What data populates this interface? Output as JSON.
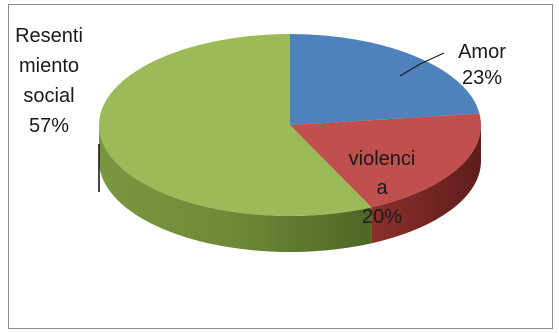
{
  "chart_data": {
    "type": "pie",
    "style": "3d",
    "categories": [
      "Amor",
      "violencia",
      "Resentimiento social"
    ],
    "values": [
      23,
      20,
      57
    ],
    "labels": [
      [
        "Amor",
        "23%"
      ],
      [
        "violenci",
        "a",
        "20%"
      ],
      [
        "Resenti",
        "miento",
        "social",
        "57%"
      ]
    ],
    "colors": [
      "#4f81bd",
      "#c0504d",
      "#9bbb59"
    ],
    "legend": "none"
  }
}
